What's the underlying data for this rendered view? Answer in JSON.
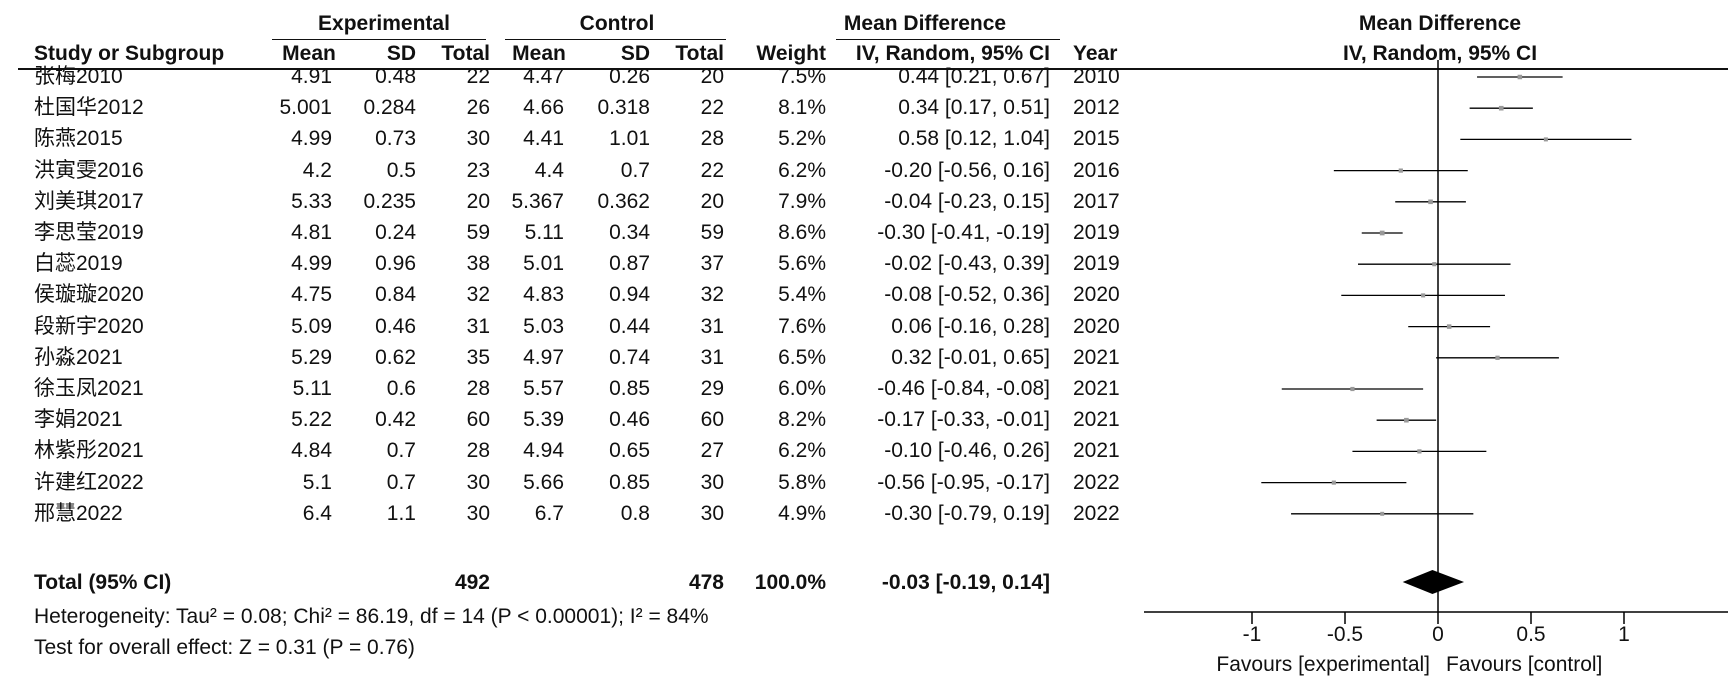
{
  "chart_data": {
    "type": "forest",
    "headers": {
      "group1": "Experimental",
      "group2": "Control",
      "effect_table": "Mean Difference",
      "effect_plot": "Mean Difference",
      "study": "Study or Subgroup",
      "mean": "Mean",
      "sd": "SD",
      "total": "Total",
      "weight": "Weight",
      "method": "IV, Random, 95% CI",
      "year": "Year",
      "method_plot": "IV, Random, 95% CI"
    },
    "studies": [
      {
        "study": "张梅2010",
        "e_mean": "4.91",
        "e_sd": "0.48",
        "e_total": "22",
        "c_mean": "4.47",
        "c_sd": "0.26",
        "c_total": "20",
        "weight": "7.5%",
        "ci_text": "0.44 [0.21, 0.67]",
        "year": "2010",
        "md": 0.44,
        "lo": 0.21,
        "hi": 0.67,
        "w": 7.5
      },
      {
        "study": "杜国华2012",
        "e_mean": "5.001",
        "e_sd": "0.284",
        "e_total": "26",
        "c_mean": "4.66",
        "c_sd": "0.318",
        "c_total": "22",
        "weight": "8.1%",
        "ci_text": "0.34 [0.17, 0.51]",
        "year": "2012",
        "md": 0.34,
        "lo": 0.17,
        "hi": 0.51,
        "w": 8.1
      },
      {
        "study": "陈燕2015",
        "e_mean": "4.99",
        "e_sd": "0.73",
        "e_total": "30",
        "c_mean": "4.41",
        "c_sd": "1.01",
        "c_total": "28",
        "weight": "5.2%",
        "ci_text": "0.58 [0.12, 1.04]",
        "year": "2015",
        "md": 0.58,
        "lo": 0.12,
        "hi": 1.04,
        "w": 5.2
      },
      {
        "study": "洪寅雯2016",
        "e_mean": "4.2",
        "e_sd": "0.5",
        "e_total": "23",
        "c_mean": "4.4",
        "c_sd": "0.7",
        "c_total": "22",
        "weight": "6.2%",
        "ci_text": "-0.20 [-0.56, 0.16]",
        "year": "2016",
        "md": -0.2,
        "lo": -0.56,
        "hi": 0.16,
        "w": 6.2
      },
      {
        "study": "刘美琪2017",
        "e_mean": "5.33",
        "e_sd": "0.235",
        "e_total": "20",
        "c_mean": "5.367",
        "c_sd": "0.362",
        "c_total": "20",
        "weight": "7.9%",
        "ci_text": "-0.04 [-0.23, 0.15]",
        "year": "2017",
        "md": -0.04,
        "lo": -0.23,
        "hi": 0.15,
        "w": 7.9
      },
      {
        "study": "李思莹2019",
        "e_mean": "4.81",
        "e_sd": "0.24",
        "e_total": "59",
        "c_mean": "5.11",
        "c_sd": "0.34",
        "c_total": "59",
        "weight": "8.6%",
        "ci_text": "-0.30 [-0.41, -0.19]",
        "year": "2019",
        "md": -0.3,
        "lo": -0.41,
        "hi": -0.19,
        "w": 8.6
      },
      {
        "study": "白蕊2019",
        "e_mean": "4.99",
        "e_sd": "0.96",
        "e_total": "38",
        "c_mean": "5.01",
        "c_sd": "0.87",
        "c_total": "37",
        "weight": "5.6%",
        "ci_text": "-0.02 [-0.43, 0.39]",
        "year": "2019",
        "md": -0.02,
        "lo": -0.43,
        "hi": 0.39,
        "w": 5.6
      },
      {
        "study": "侯璇璇2020",
        "e_mean": "4.75",
        "e_sd": "0.84",
        "e_total": "32",
        "c_mean": "4.83",
        "c_sd": "0.94",
        "c_total": "32",
        "weight": "5.4%",
        "ci_text": "-0.08 [-0.52, 0.36]",
        "year": "2020",
        "md": -0.08,
        "lo": -0.52,
        "hi": 0.36,
        "w": 5.4
      },
      {
        "study": "段新宇2020",
        "e_mean": "5.09",
        "e_sd": "0.46",
        "e_total": "31",
        "c_mean": "5.03",
        "c_sd": "0.44",
        "c_total": "31",
        "weight": "7.6%",
        "ci_text": "0.06 [-0.16, 0.28]",
        "year": "2020",
        "md": 0.06,
        "lo": -0.16,
        "hi": 0.28,
        "w": 7.6
      },
      {
        "study": "孙淼2021",
        "e_mean": "5.29",
        "e_sd": "0.62",
        "e_total": "35",
        "c_mean": "4.97",
        "c_sd": "0.74",
        "c_total": "31",
        "weight": "6.5%",
        "ci_text": "0.32 [-0.01, 0.65]",
        "year": "2021",
        "md": 0.32,
        "lo": -0.01,
        "hi": 0.65,
        "w": 6.5
      },
      {
        "study": "徐玉凤2021",
        "e_mean": "5.11",
        "e_sd": "0.6",
        "e_total": "28",
        "c_mean": "5.57",
        "c_sd": "0.85",
        "c_total": "29",
        "weight": "6.0%",
        "ci_text": "-0.46 [-0.84, -0.08]",
        "year": "2021",
        "md": -0.46,
        "lo": -0.84,
        "hi": -0.08,
        "w": 6.0
      },
      {
        "study": "李娟2021",
        "e_mean": "5.22",
        "e_sd": "0.42",
        "e_total": "60",
        "c_mean": "5.39",
        "c_sd": "0.46",
        "c_total": "60",
        "weight": "8.2%",
        "ci_text": "-0.17 [-0.33, -0.01]",
        "year": "2021",
        "md": -0.17,
        "lo": -0.33,
        "hi": -0.01,
        "w": 8.2
      },
      {
        "study": "林紫彤2021",
        "e_mean": "4.84",
        "e_sd": "0.7",
        "e_total": "28",
        "c_mean": "4.94",
        "c_sd": "0.65",
        "c_total": "27",
        "weight": "6.2%",
        "ci_text": "-0.10 [-0.46, 0.26]",
        "year": "2021",
        "md": -0.1,
        "lo": -0.46,
        "hi": 0.26,
        "w": 6.2
      },
      {
        "study": "许建红2022",
        "e_mean": "5.1",
        "e_sd": "0.7",
        "e_total": "30",
        "c_mean": "5.66",
        "c_sd": "0.85",
        "c_total": "30",
        "weight": "5.8%",
        "ci_text": "-0.56 [-0.95, -0.17]",
        "year": "2022",
        "md": -0.56,
        "lo": -0.95,
        "hi": -0.17,
        "w": 5.8
      },
      {
        "study": "邢慧2022",
        "e_mean": "6.4",
        "e_sd": "1.1",
        "e_total": "30",
        "c_mean": "6.7",
        "c_sd": "0.8",
        "c_total": "30",
        "weight": "4.9%",
        "ci_text": "-0.30 [-0.79, 0.19]",
        "year": "2022",
        "md": -0.3,
        "lo": -0.79,
        "hi": 0.19,
        "w": 4.9
      }
    ],
    "total": {
      "label": "Total (95% CI)",
      "e_total": "492",
      "c_total": "478",
      "weight": "100.0%",
      "ci_text": "-0.03 [-0.19, 0.14]",
      "md": -0.03,
      "lo": -0.19,
      "hi": 0.14
    },
    "heterogeneity": "Heterogeneity: Tau² = 0.08; Chi² = 86.19, df = 14 (P < 0.00001); I² = 84%",
    "overall_effect": "Test for overall effect: Z = 0.31 (P = 0.76)",
    "axis": {
      "xlim": [
        -1,
        1
      ],
      "ticks": [
        -1,
        -0.5,
        0,
        0.5,
        1
      ],
      "tick_labels": [
        "-1",
        "-0.5",
        "0",
        "0.5",
        "1"
      ],
      "favours_left": "Favours [experimental]",
      "favours_right": "Favours [control]"
    },
    "colors": {
      "marker": "#999999",
      "line": "#000000",
      "diamond": "#000000"
    }
  }
}
